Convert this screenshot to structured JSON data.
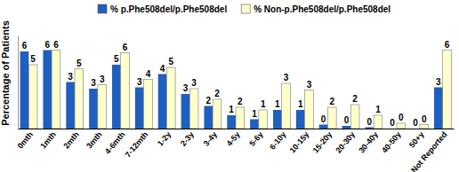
{
  "chart_data": {
    "type": "bar",
    "y_label": "Percentage of Patients",
    "categories": [
      "0mth",
      "1mth",
      "2mth",
      "3mth",
      "4-6mth",
      "7-12mth",
      "1-2y",
      "2-3y",
      "3-4y",
      "4-5y",
      "5-6y",
      "6-10y",
      "10-15y",
      "15-20y",
      "20-30y",
      "30-40y",
      "40-50y",
      "50+y",
      "Not Reported"
    ],
    "series": [
      {
        "name": "% p.Phe508del/p.Phe508del",
        "color": "#1f5fbf",
        "values": [
          5.8,
          5.9,
          3.5,
          3.0,
          4.8,
          3.1,
          4.1,
          2.6,
          1.7,
          1.0,
          0.7,
          1.4,
          1.4,
          0.3,
          0.2,
          0.1,
          0,
          0,
          3.1
        ],
        "value_labels": [
          "6",
          "6",
          "3",
          "3",
          "5",
          "3",
          "4",
          "3",
          "2",
          "1",
          "1",
          "1",
          "1",
          "0",
          "0",
          "0",
          "0",
          "0",
          "3"
        ]
      },
      {
        "name": "% Non-p.Phe508del/p.Phe508del",
        "color": "#ffffcc",
        "values": [
          4.8,
          5.9,
          4.5,
          3.3,
          5.7,
          3.7,
          4.6,
          3.0,
          2.2,
          1.6,
          1.4,
          3.4,
          2.9,
          1.6,
          1.8,
          1.0,
          0.4,
          0.3,
          5.9
        ],
        "value_labels": [
          "5",
          "6",
          "5",
          "3",
          "6",
          "4",
          "5",
          "3",
          "2",
          "2",
          "1",
          "3",
          "3",
          "2",
          "2",
          "1",
          "0",
          "0",
          "6"
        ]
      }
    ],
    "ylim": [
      0,
      7
    ],
    "tick_labels": "x",
    "data_labels": true,
    "legend": "top"
  }
}
